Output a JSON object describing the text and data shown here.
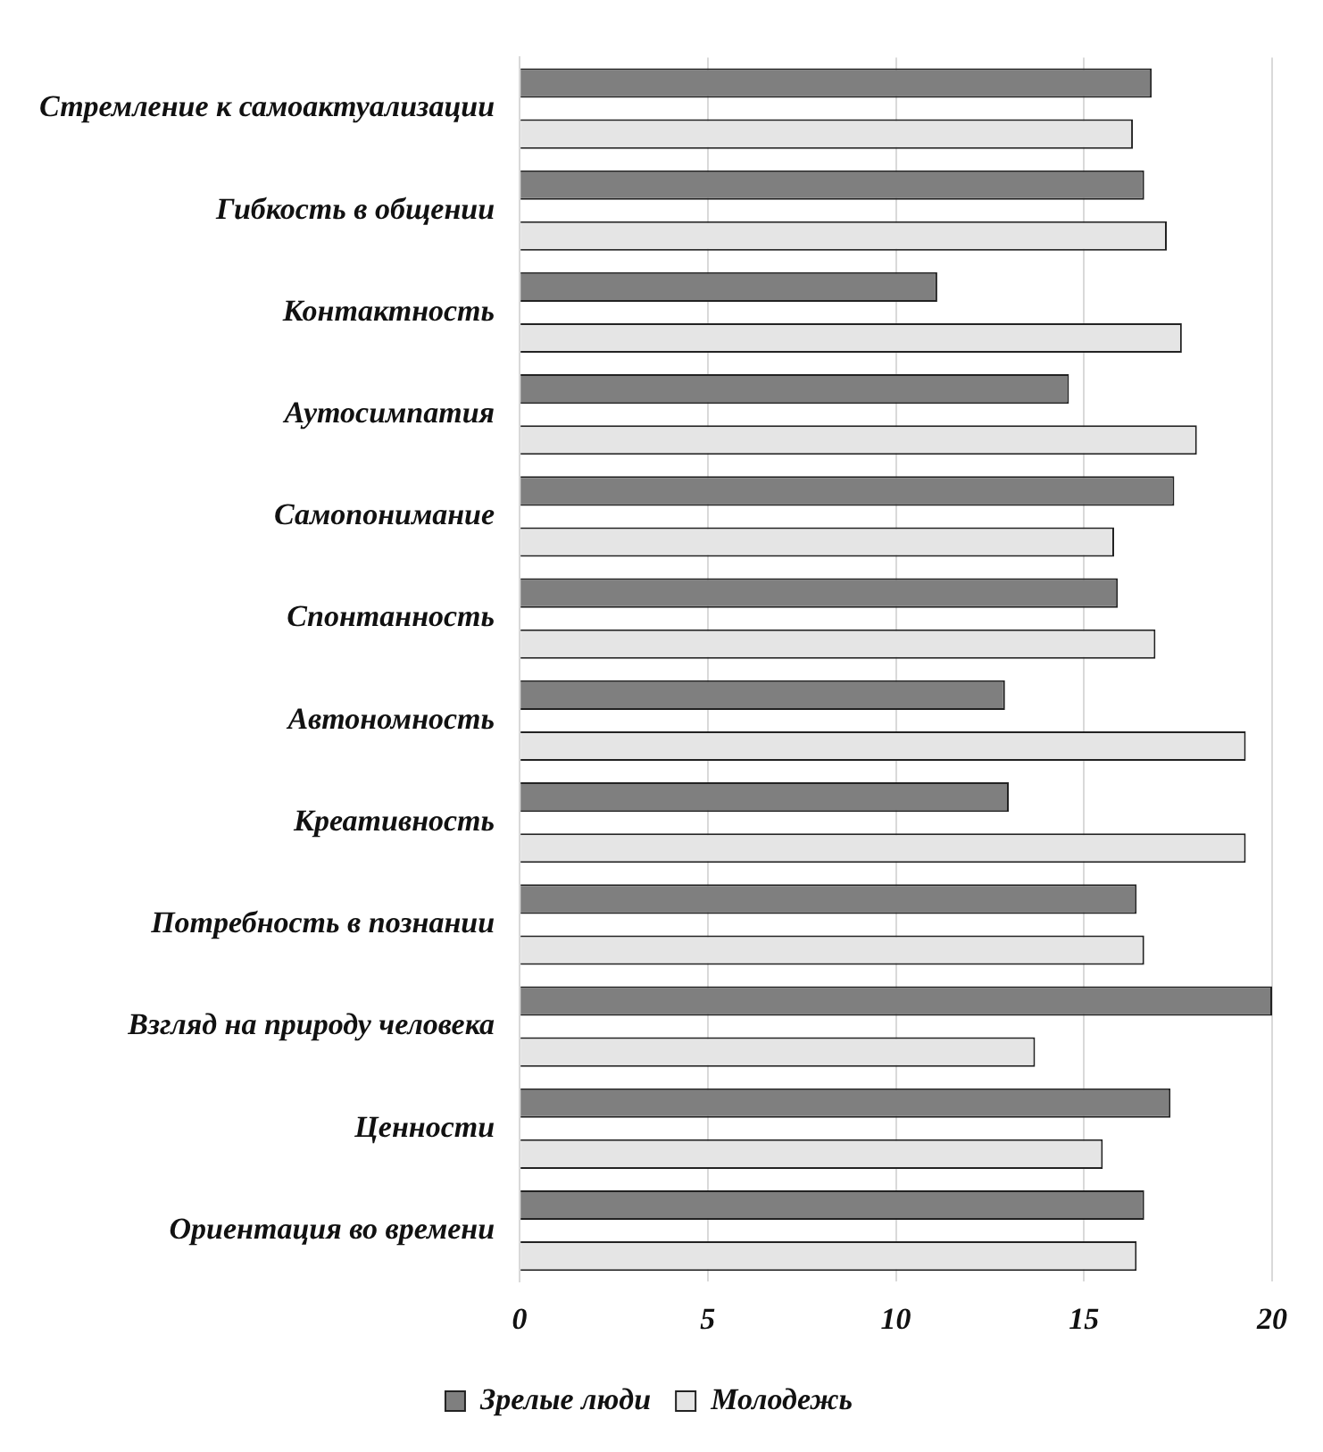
{
  "chart_data": {
    "type": "bar",
    "orientation": "horizontal",
    "categories": [
      "Стремление к самоактуализации",
      "Гибкость в общении",
      "Контактность",
      "Аутосимпатия",
      "Самопонимание",
      "Спонтанность",
      "Автономность",
      "Креативность",
      "Потребность в познании",
      "Взгляд на природу человека",
      "Ценности",
      "Ориентация во времени"
    ],
    "series": [
      {
        "name": "Зрелые люди",
        "color": "#7f7f7f",
        "values": [
          16.8,
          16.6,
          11.1,
          14.6,
          17.4,
          15.9,
          12.9,
          13.0,
          16.4,
          20.0,
          17.3,
          16.6
        ]
      },
      {
        "name": "Молодежь",
        "color": "#e5e5e5",
        "values": [
          16.3,
          17.2,
          17.6,
          18.0,
          15.8,
          16.9,
          19.3,
          19.3,
          16.6,
          13.7,
          15.5,
          16.4
        ]
      }
    ],
    "xlim": [
      0,
      20
    ],
    "xticks": [
      0,
      5,
      10,
      15,
      20
    ],
    "grid": "x",
    "legend": "bottom"
  }
}
